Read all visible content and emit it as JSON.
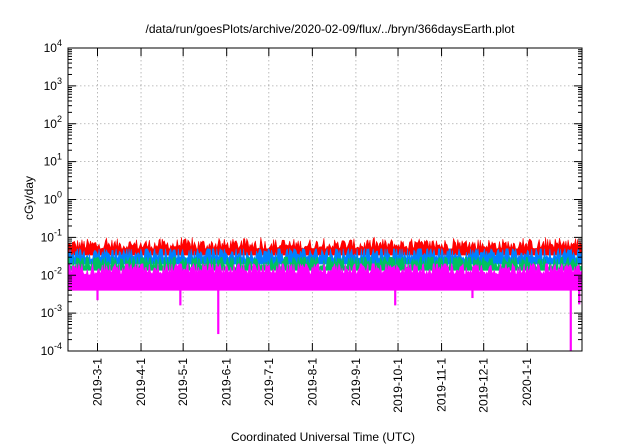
{
  "chart_data": {
    "type": "area",
    "title": "/data/run/goesPlots/archive/2020-02-09/flux/../bryn/366daysEarth.plot",
    "xlabel": "Coordinated Universal Time (UTC)",
    "ylabel": "cGy/day",
    "yscale": "log",
    "ylim": [
      0.0001,
      10000
    ],
    "xlim": [
      "2019-02-08",
      "2020-02-09"
    ],
    "y_ticks": [
      {
        "value": 0.0001,
        "mant": "10",
        "exp": "-4"
      },
      {
        "value": 0.001,
        "mant": "10",
        "exp": "-3"
      },
      {
        "value": 0.01,
        "mant": "10",
        "exp": "-2"
      },
      {
        "value": 0.1,
        "mant": "10",
        "exp": "-1"
      },
      {
        "value": 1,
        "mant": "10",
        "exp": "0"
      },
      {
        "value": 10,
        "mant": "10",
        "exp": "1"
      },
      {
        "value": 100,
        "mant": "10",
        "exp": "2"
      },
      {
        "value": 1000,
        "mant": "10",
        "exp": "3"
      },
      {
        "value": 10000,
        "mant": "10",
        "exp": "4"
      }
    ],
    "x_ticks": [
      {
        "date": "2019-03-01",
        "label": "2019-3-1"
      },
      {
        "date": "2019-04-01",
        "label": "2019-4-1"
      },
      {
        "date": "2019-05-01",
        "label": "2019-5-1"
      },
      {
        "date": "2019-06-01",
        "label": "2019-6-1"
      },
      {
        "date": "2019-07-01",
        "label": "2019-7-1"
      },
      {
        "date": "2019-08-01",
        "label": "2019-8-1"
      },
      {
        "date": "2019-09-01",
        "label": "2019-9-1"
      },
      {
        "date": "2019-10-01",
        "label": "2019-10-1"
      },
      {
        "date": "2019-11-01",
        "label": "2019-11-1"
      },
      {
        "date": "2019-12-01",
        "label": "2019-12-1"
      },
      {
        "date": "2020-01-01",
        "label": "2020-1-1"
      }
    ],
    "grid": true,
    "series": [
      {
        "color": "#ff0000",
        "typical": 0.062,
        "range": [
          0.05,
          0.1
        ]
      },
      {
        "color": "#0080ff",
        "typical": 0.038,
        "range": [
          0.025,
          0.05
        ]
      },
      {
        "color": "#00c060",
        "typical": 0.022,
        "range": [
          0.015,
          0.03
        ]
      },
      {
        "color": "#ff00ff",
        "typical": 0.015,
        "range": [
          0.004,
          0.02
        ],
        "dips": [
          {
            "date": "2019-03-01",
            "value": 0.0022
          },
          {
            "date": "2019-04-29",
            "value": 0.0016
          },
          {
            "date": "2019-05-26",
            "value": 0.00028
          },
          {
            "date": "2019-09-29",
            "value": 0.0016
          },
          {
            "date": "2019-11-23",
            "value": 0.0025
          },
          {
            "date": "2020-02-01",
            "value": 0.0001
          },
          {
            "date": "2020-02-07",
            "value": 0.0017
          }
        ]
      }
    ]
  }
}
